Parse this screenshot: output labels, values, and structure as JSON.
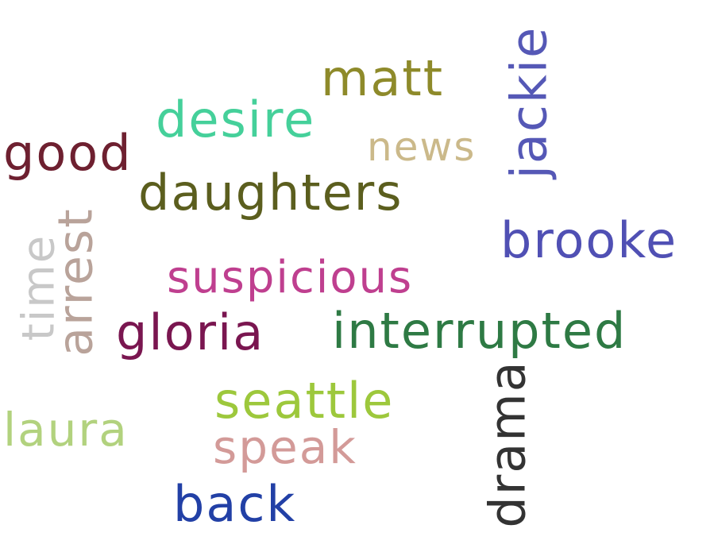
{
  "words": {
    "matt": {
      "text": "matt",
      "color": "#8e8a2a"
    },
    "jackie": {
      "text": "jackie",
      "color": "#5558b6"
    },
    "desire": {
      "text": "desire",
      "color": "#45d09a"
    },
    "good": {
      "text": "good",
      "color": "#6e2030"
    },
    "news": {
      "text": "news",
      "color": "#cbb98a"
    },
    "daughters": {
      "text": "daughters",
      "color": "#5b5e1e"
    },
    "arrest": {
      "text": "arrest",
      "color": "#b9a39a"
    },
    "brooke": {
      "text": "brooke",
      "color": "#5050b4"
    },
    "time": {
      "text": "time",
      "color": "#c8c8c8"
    },
    "suspicious": {
      "text": "suspicious",
      "color": "#bf3f8f"
    },
    "gloria": {
      "text": "gloria",
      "color": "#7a1650"
    },
    "interrupted": {
      "text": "interrupted",
      "color": "#2e7a44"
    },
    "seattle": {
      "text": "seattle",
      "color": "#9dc83c"
    },
    "drama": {
      "text": "drama",
      "color": "#333333"
    },
    "laura": {
      "text": "laura",
      "color": "#b2d27e"
    },
    "speak": {
      "text": "speak",
      "color": "#d39a98"
    },
    "back": {
      "text": "back",
      "color": "#2240a6"
    }
  }
}
